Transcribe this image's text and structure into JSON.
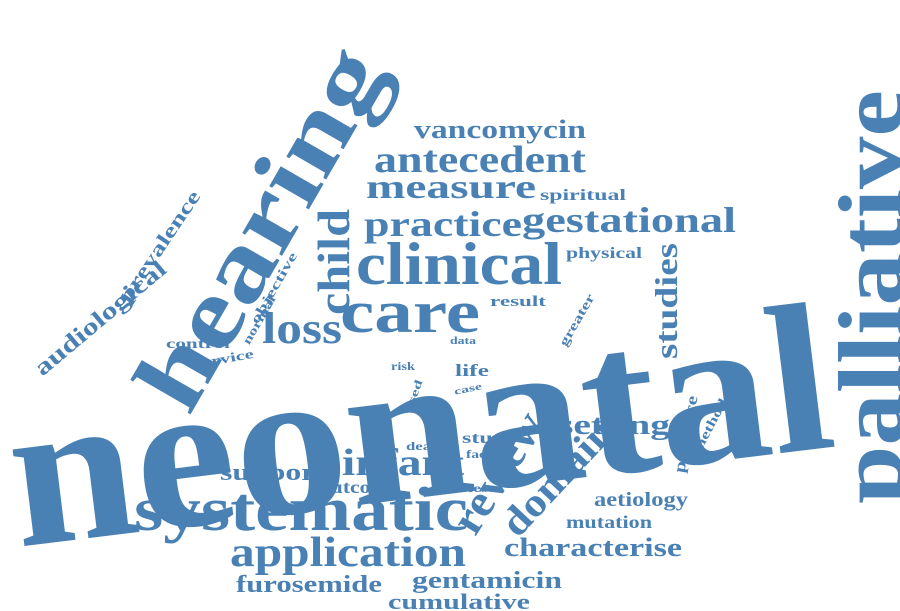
{
  "colors": {
    "word": "#4a81b5",
    "background": "#ffffff"
  },
  "words": {
    "neonatal": "neonatal",
    "palliative": "palliative",
    "hearing": "hearing",
    "systematic": "systematic",
    "clinical": "clinical",
    "care": "care",
    "application": "application",
    "review": "review",
    "infant": "infant",
    "domain": "domain",
    "loss": "loss",
    "antecedent": "antecedent",
    "measure": "measure",
    "practice": "practice",
    "gestational": "gestational",
    "child": "child",
    "vancomycin": "vancomycin",
    "setting": "setting",
    "studies": "studies",
    "characterise": "characterise",
    "support": "support",
    "furosemide": "furosemide",
    "gentamicin": "gentamicin",
    "cumulative": "cumulative",
    "audiological": "audiological",
    "prevalence": "prevalence",
    "aetiology": "aetiology",
    "mutation": "mutation",
    "outcome": "outcome",
    "study": "study",
    "presence": "presence",
    "spiritual": "spiritual",
    "physical": "physical",
    "result": "result",
    "life": "life",
    "control": "control",
    "service": "service",
    "objective": "objective",
    "normal": "normal",
    "greater": "greater",
    "method": "method",
    "factor": "factor",
    "death": "death",
    "babies": "babies",
    "risk": "risk",
    "used": "used",
    "case": "case",
    "data": "data"
  }
}
